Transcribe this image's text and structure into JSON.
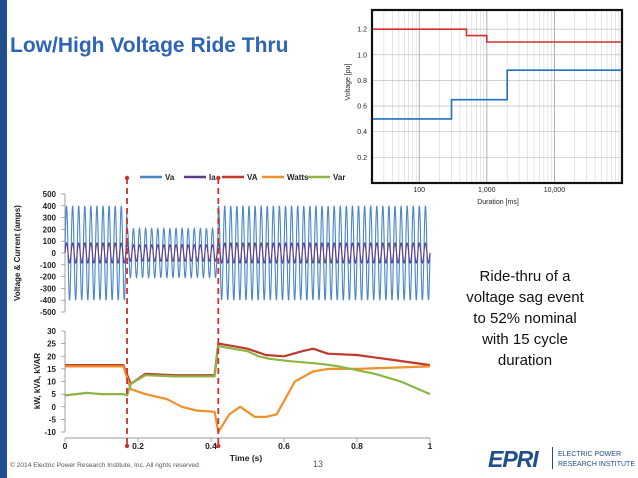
{
  "slide": {
    "title": "Low/High Voltage Ride Thru",
    "description": [
      "Ride-thru of a",
      "voltage sag event",
      "to 52% nominal",
      "with 15 cycle",
      "duration"
    ],
    "footer": "© 2014 Electric Power Research Institute, Inc. All rights reserved.",
    "page_number": "13",
    "logo_text": "EPRI",
    "logo_tagline": [
      "ELECTRIC POWER",
      "RESEARCH INSTITUTE"
    ]
  },
  "colors": {
    "blue": "#2e64b5",
    "red": "#d0312d",
    "navy": "#1f4e8c"
  },
  "chart_data": [
    {
      "type": "line",
      "title": "",
      "xlabel": "Duration [ms]",
      "ylabel": "Voltage [pu]",
      "xscale": "log",
      "xlim": [
        20,
        100000
      ],
      "ylim": [
        0,
        1.35
      ],
      "xticks": [
        {
          "v": 100,
          "label": "100"
        },
        {
          "v": 1000,
          "label": "1,000"
        },
        {
          "v": 10000,
          "label": "10,000"
        }
      ],
      "yticks": [
        0.2,
        0.4,
        0.6,
        0.8,
        1.0,
        1.2
      ],
      "yticklabels": [
        "0.2",
        "0.4",
        "0.6",
        "0.8",
        "1.0",
        "1.2"
      ],
      "grid": true,
      "series": [
        {
          "color": "#d0312d",
          "points": [
            [
              20,
              1.2
            ],
            [
              500,
              1.2
            ],
            [
              500,
              1.15
            ],
            [
              1000,
              1.15
            ],
            [
              1000,
              1.1
            ],
            [
              100000,
              1.1
            ]
          ]
        },
        {
          "color": "#1f6fc2",
          "points": [
            [
              20,
              0.5
            ],
            [
              300,
              0.5
            ],
            [
              300,
              0.65
            ],
            [
              2000,
              0.65
            ],
            [
              2000,
              0.88
            ],
            [
              100000,
              0.88
            ]
          ]
        }
      ]
    },
    {
      "type": "line",
      "title": "",
      "xlabel": "",
      "ylabel": "Voltage & Current (amps)",
      "xlim": [
        0,
        1
      ],
      "ylim": [
        -500,
        500
      ],
      "yticks": [
        500,
        400,
        300,
        200,
        100,
        0,
        -100,
        -200,
        -300,
        -400,
        -500
      ],
      "yticklabels": [
        "500",
        "400",
        "300",
        "200",
        "100",
        "0",
        "-100",
        "-200",
        "-300",
        "-400",
        "-500"
      ],
      "legend": "top",
      "events": [
        0.17,
        0.42
      ],
      "series": [
        {
          "name": "Va",
          "color": "#4a86c8",
          "cycles_per_unit": 60,
          "amplitude": [
            [
              0,
              0.17,
              400
            ],
            [
              0.17,
              0.42,
              208
            ],
            [
              0.42,
              1.0,
              400
            ]
          ]
        },
        {
          "name": "Ia",
          "color": "#5b3c88",
          "cycles_per_unit": 60,
          "amplitude": [
            [
              0,
              0.17,
              85
            ],
            [
              0.17,
              0.42,
              70
            ],
            [
              0.42,
              1.0,
              85
            ]
          ]
        }
      ]
    },
    {
      "type": "line",
      "title": "",
      "xlabel": "Time (s)",
      "ylabel": "kW, kVA, kVAR",
      "xlim": [
        0,
        1
      ],
      "ylim": [
        -10,
        30
      ],
      "xticks": [
        {
          "v": 0,
          "label": "0"
        },
        {
          "v": 0.2,
          "label": "0.2"
        },
        {
          "v": 0.4,
          "label": "0.4"
        },
        {
          "v": 0.6,
          "label": "0.6"
        },
        {
          "v": 0.8,
          "label": "0.8"
        },
        {
          "v": 1,
          "label": "1"
        }
      ],
      "yticks": [
        30,
        25,
        20,
        15,
        10,
        5,
        0,
        -5,
        -10
      ],
      "yticklabels": [
        "30",
        "25",
        "20",
        "15",
        "10",
        "5",
        "0",
        "-5",
        "-10"
      ],
      "events": [
        0.17,
        0.42
      ],
      "series": [
        {
          "name": "VA",
          "color": "#c0392b",
          "points": [
            [
              0,
              16.5
            ],
            [
              0.16,
              16.5
            ],
            [
              0.18,
              9
            ],
            [
              0.22,
              13
            ],
            [
              0.3,
              12.5
            ],
            [
              0.41,
              12.5
            ],
            [
              0.42,
              25
            ],
            [
              0.46,
              24
            ],
            [
              0.5,
              23
            ],
            [
              0.55,
              20.5
            ],
            [
              0.6,
              20
            ],
            [
              0.65,
              22
            ],
            [
              0.68,
              23
            ],
            [
              0.72,
              21
            ],
            [
              0.8,
              20.5
            ],
            [
              0.9,
              18.5
            ],
            [
              1.0,
              16.5
            ]
          ]
        },
        {
          "name": "Watts",
          "color": "#f0902a",
          "points": [
            [
              0,
              16
            ],
            [
              0.16,
              16
            ],
            [
              0.18,
              7
            ],
            [
              0.22,
              5
            ],
            [
              0.28,
              3
            ],
            [
              0.32,
              0
            ],
            [
              0.36,
              -1.5
            ],
            [
              0.41,
              -2
            ],
            [
              0.42,
              -10
            ],
            [
              0.45,
              -3
            ],
            [
              0.48,
              0
            ],
            [
              0.5,
              -2
            ],
            [
              0.52,
              -4
            ],
            [
              0.55,
              -4
            ],
            [
              0.58,
              -3
            ],
            [
              0.63,
              10
            ],
            [
              0.68,
              14
            ],
            [
              0.72,
              15
            ],
            [
              0.8,
              15
            ],
            [
              0.9,
              15.5
            ],
            [
              1.0,
              16
            ]
          ]
        },
        {
          "name": "Var",
          "color": "#8db543",
          "points": [
            [
              0,
              4.5
            ],
            [
              0.03,
              5
            ],
            [
              0.06,
              5.5
            ],
            [
              0.1,
              5
            ],
            [
              0.16,
              5
            ],
            [
              0.17,
              4.5
            ],
            [
              0.18,
              9
            ],
            [
              0.22,
              12.5
            ],
            [
              0.3,
              12
            ],
            [
              0.41,
              12
            ],
            [
              0.42,
              24
            ],
            [
              0.46,
              23
            ],
            [
              0.5,
              22
            ],
            [
              0.53,
              20
            ],
            [
              0.56,
              19
            ],
            [
              0.62,
              18
            ],
            [
              0.7,
              17
            ],
            [
              0.75,
              16
            ],
            [
              0.85,
              13
            ],
            [
              0.92,
              10
            ],
            [
              1.0,
              5
            ]
          ]
        }
      ],
      "legend_order": [
        "Va",
        "Ia",
        "VA",
        "Watts",
        "Var"
      ]
    }
  ]
}
